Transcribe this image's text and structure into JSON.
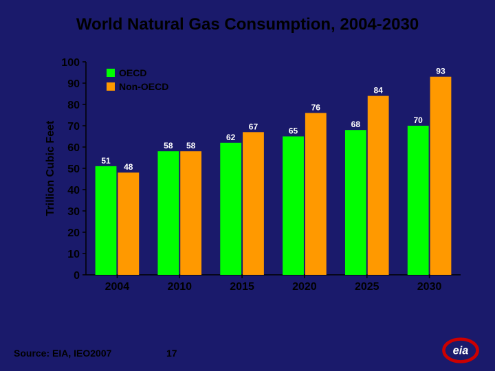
{
  "title": "World Natural Gas Consumption, 2004-2030",
  "source_label": "Source:  EIA, IEO2007",
  "page_number": "17",
  "chart": {
    "type": "bar",
    "ylabel": "Trillion Cubic Feet",
    "ylabel_fontsize": 16,
    "ylim": [
      0,
      100
    ],
    "ytick_step": 10,
    "yticks": [
      0,
      10,
      20,
      30,
      40,
      50,
      60,
      70,
      80,
      90,
      100
    ],
    "tick_fontsize": 16,
    "categories": [
      "2004",
      "2010",
      "2015",
      "2020",
      "2025",
      "2030"
    ],
    "series": [
      {
        "name": "OECD",
        "color": "#00ff00",
        "values": [
          51,
          58,
          62,
          65,
          68,
          70
        ]
      },
      {
        "name": "Non-OECD",
        "color": "#ff9900",
        "values": [
          48,
          58,
          67,
          76,
          84,
          93
        ]
      }
    ],
    "legend": {
      "position": "inside-top-left",
      "items": [
        {
          "label": "OECD",
          "color": "#00ff00"
        },
        {
          "label": "Non-OECD",
          "color": "#ff9900"
        }
      ],
      "fontsize": 14
    },
    "axis_color": "#000000",
    "tick_color": "#000000",
    "datalabel_color": "#ffffff",
    "datalabel_fontsize": 12,
    "background_color": "#1a1a6b",
    "bar_group_width": 0.7,
    "bar_gap": 2
  },
  "logo": {
    "name": "eia-logo",
    "ring_color": "#cc0000",
    "text_color": "#ffffff"
  }
}
